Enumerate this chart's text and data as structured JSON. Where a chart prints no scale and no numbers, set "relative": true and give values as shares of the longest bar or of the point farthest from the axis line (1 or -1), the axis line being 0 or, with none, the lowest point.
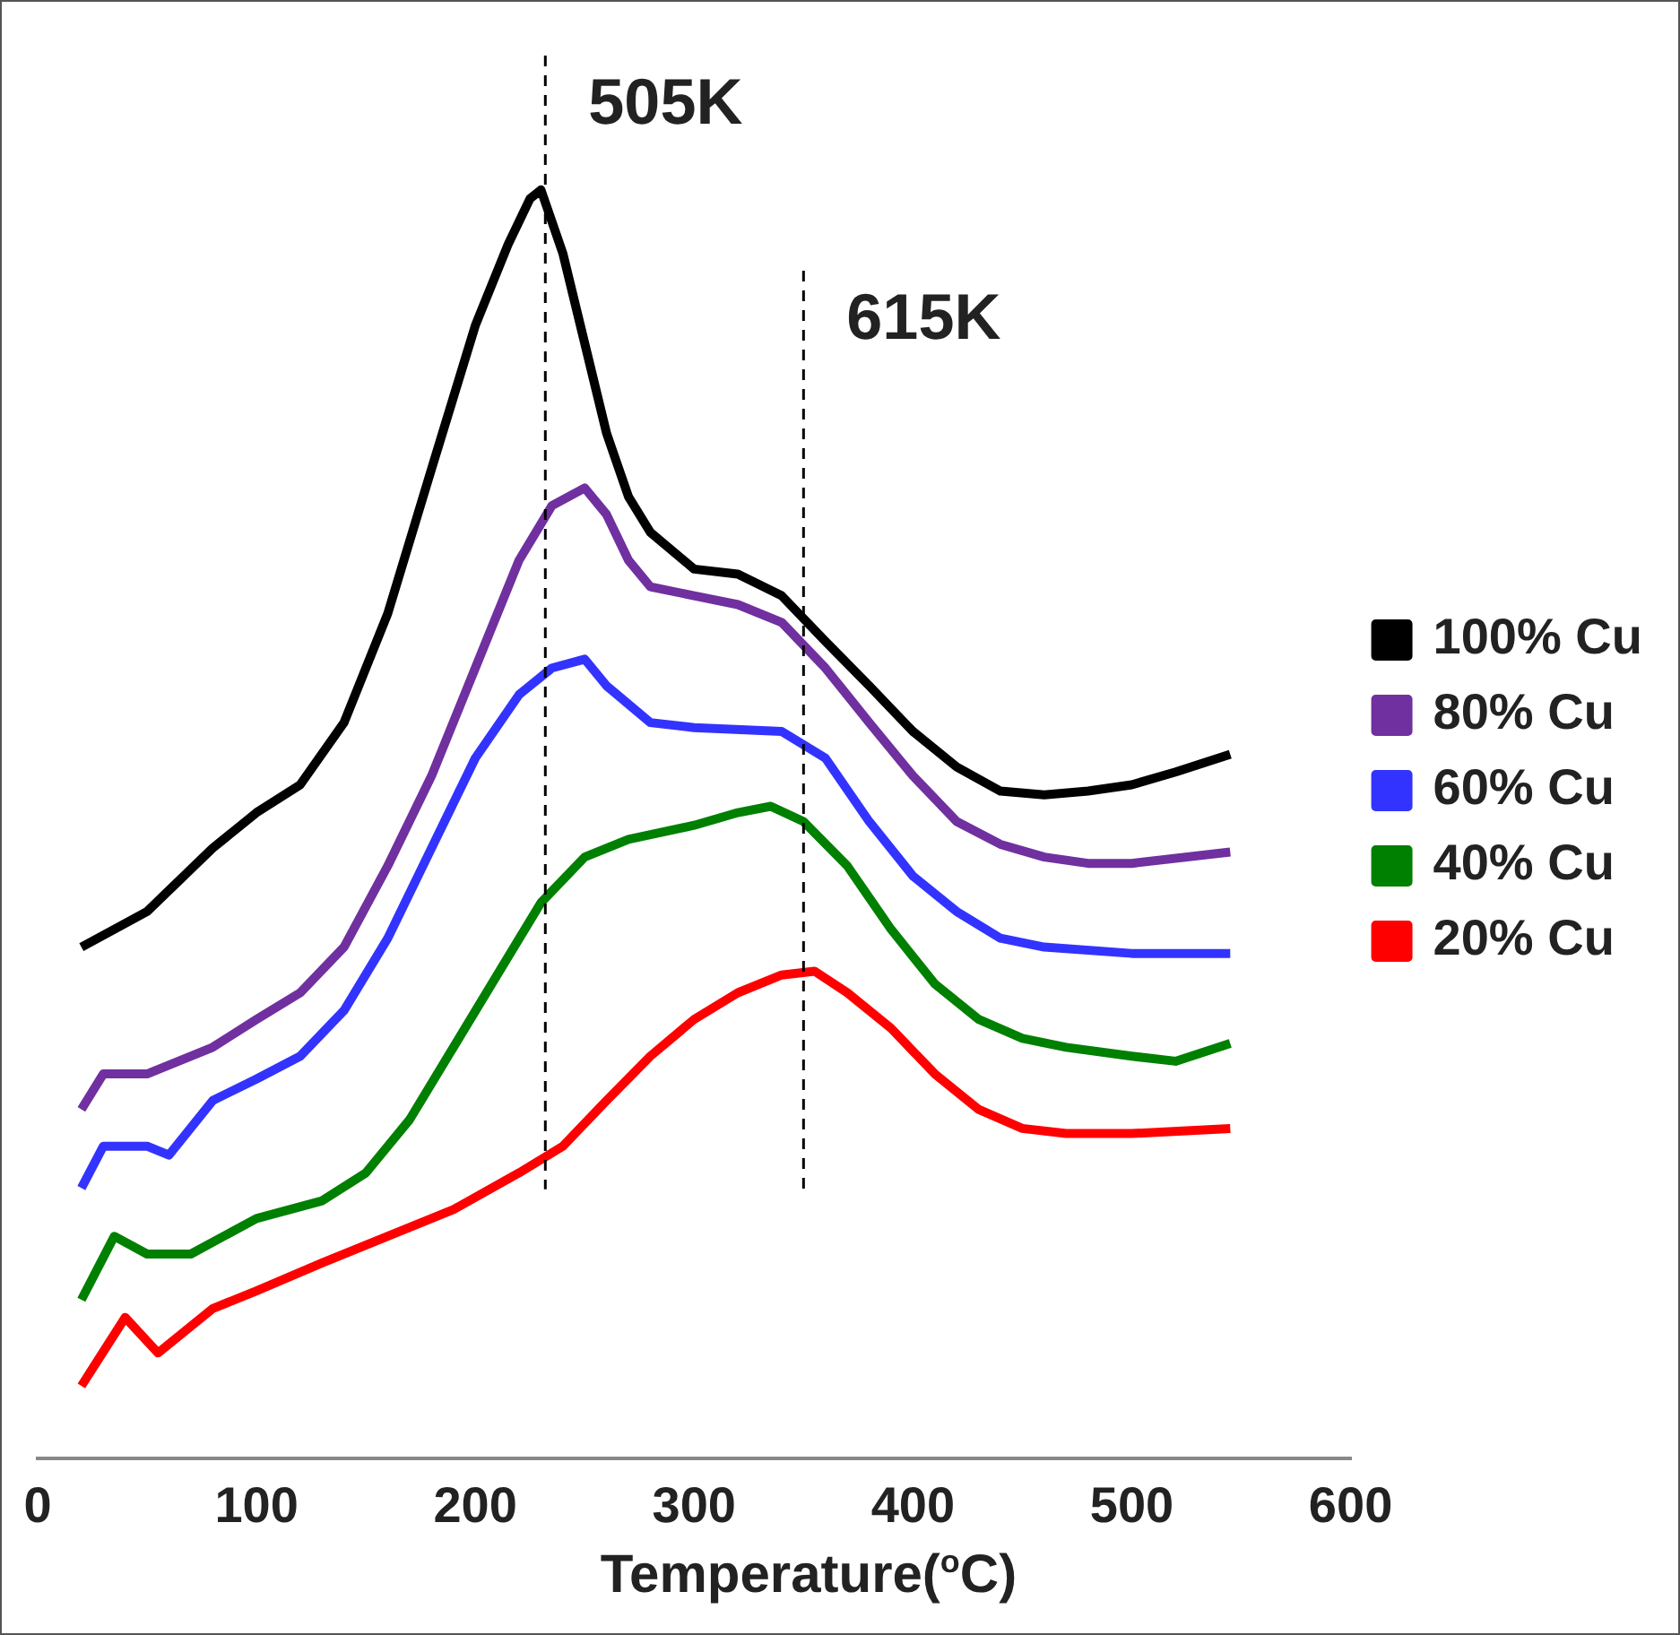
{
  "chart_data": {
    "type": "line",
    "relative": true,
    "xlabel": "Temperature($^{o}$C)",
    "xlim": [
      0,
      600
    ],
    "xticks": [
      0,
      100,
      200,
      300,
      400,
      500,
      600
    ],
    "legend": "right",
    "marker": "none",
    "line_style": "solid",
    "grid": false,
    "x": [
      20,
      50,
      80,
      100,
      120,
      140,
      160,
      180,
      200,
      215,
      225,
      230,
      240,
      250,
      260,
      270,
      280,
      300,
      320,
      340,
      360,
      380,
      400,
      420,
      440,
      460,
      480,
      500,
      520,
      545
    ],
    "series": [
      {
        "name": "100% Cu",
        "color": "#000000",
        "values": [
          0.403,
          0.431,
          0.481,
          0.509,
          0.531,
          0.58,
          0.666,
          0.78,
          0.893,
          0.957,
          0.993,
          1,
          0.95,
          0.879,
          0.808,
          0.758,
          0.73,
          0.701,
          0.697,
          0.68,
          0.644,
          0.609,
          0.573,
          0.545,
          0.526,
          0.523,
          0.526,
          0.531,
          0.541,
          0.555
        ]
      },
      {
        "name": "80% Cu",
        "color": "#7030a0",
        "x": [
          20,
          30,
          50,
          80,
          100,
          120,
          140,
          160,
          180,
          200,
          220,
          235,
          250,
          260,
          270,
          280,
          300,
          320,
          340,
          360,
          380,
          400,
          420,
          440,
          460,
          480,
          500,
          545
        ],
        "values": [
          0.275,
          0.303,
          0.303,
          0.324,
          0.346,
          0.367,
          0.403,
          0.467,
          0.538,
          0.623,
          0.708,
          0.751,
          0.765,
          0.744,
          0.708,
          0.687,
          0.68,
          0.673,
          0.659,
          0.623,
          0.58,
          0.538,
          0.502,
          0.484,
          0.474,
          0.469,
          0.469,
          0.478
        ]
      },
      {
        "name": "60% Cu",
        "color": "#3333ff",
        "x": [
          20,
          30,
          50,
          60,
          80,
          100,
          120,
          140,
          160,
          180,
          200,
          220,
          235,
          250,
          260,
          280,
          300,
          340,
          360,
          380,
          400,
          420,
          440,
          460,
          500,
          545
        ],
        "values": [
          0.213,
          0.246,
          0.246,
          0.239,
          0.282,
          0.299,
          0.317,
          0.353,
          0.41,
          0.481,
          0.552,
          0.602,
          0.623,
          0.63,
          0.609,
          0.58,
          0.576,
          0.573,
          0.552,
          0.502,
          0.459,
          0.431,
          0.41,
          0.403,
          0.398,
          0.398
        ]
      },
      {
        "name": "40% Cu",
        "color": "#008000",
        "x": [
          20,
          35,
          50,
          70,
          100,
          130,
          150,
          170,
          190,
          210,
          230,
          250,
          270,
          300,
          320,
          335,
          350,
          370,
          390,
          410,
          430,
          450,
          470,
          500,
          520,
          545
        ],
        "values": [
          0.125,
          0.175,
          0.161,
          0.161,
          0.189,
          0.203,
          0.225,
          0.267,
          0.324,
          0.381,
          0.438,
          0.474,
          0.488,
          0.499,
          0.509,
          0.514,
          0.502,
          0.467,
          0.417,
          0.374,
          0.346,
          0.331,
          0.324,
          0.317,
          0.313,
          0.327
        ]
      },
      {
        "name": "20% Cu",
        "color": "#ff0000",
        "x": [
          20,
          40,
          55,
          80,
          100,
          130,
          160,
          190,
          220,
          240,
          260,
          280,
          300,
          320,
          340,
          355,
          370,
          390,
          410,
          430,
          450,
          470,
          500,
          545
        ],
        "values": [
          0.057,
          0.111,
          0.083,
          0.118,
          0.132,
          0.154,
          0.175,
          0.196,
          0.225,
          0.246,
          0.282,
          0.317,
          0.346,
          0.367,
          0.381,
          0.384,
          0.367,
          0.339,
          0.303,
          0.275,
          0.26,
          0.256,
          0.256,
          0.26
        ]
      }
    ],
    "ref_lines": [
      {
        "axis": "x",
        "value": 232,
        "label": "505K",
        "color": "#000000",
        "line_style": "dashed"
      },
      {
        "axis": "x",
        "value": 350,
        "label": "615K",
        "color": "#000000",
        "line_style": "dashed"
      }
    ]
  }
}
